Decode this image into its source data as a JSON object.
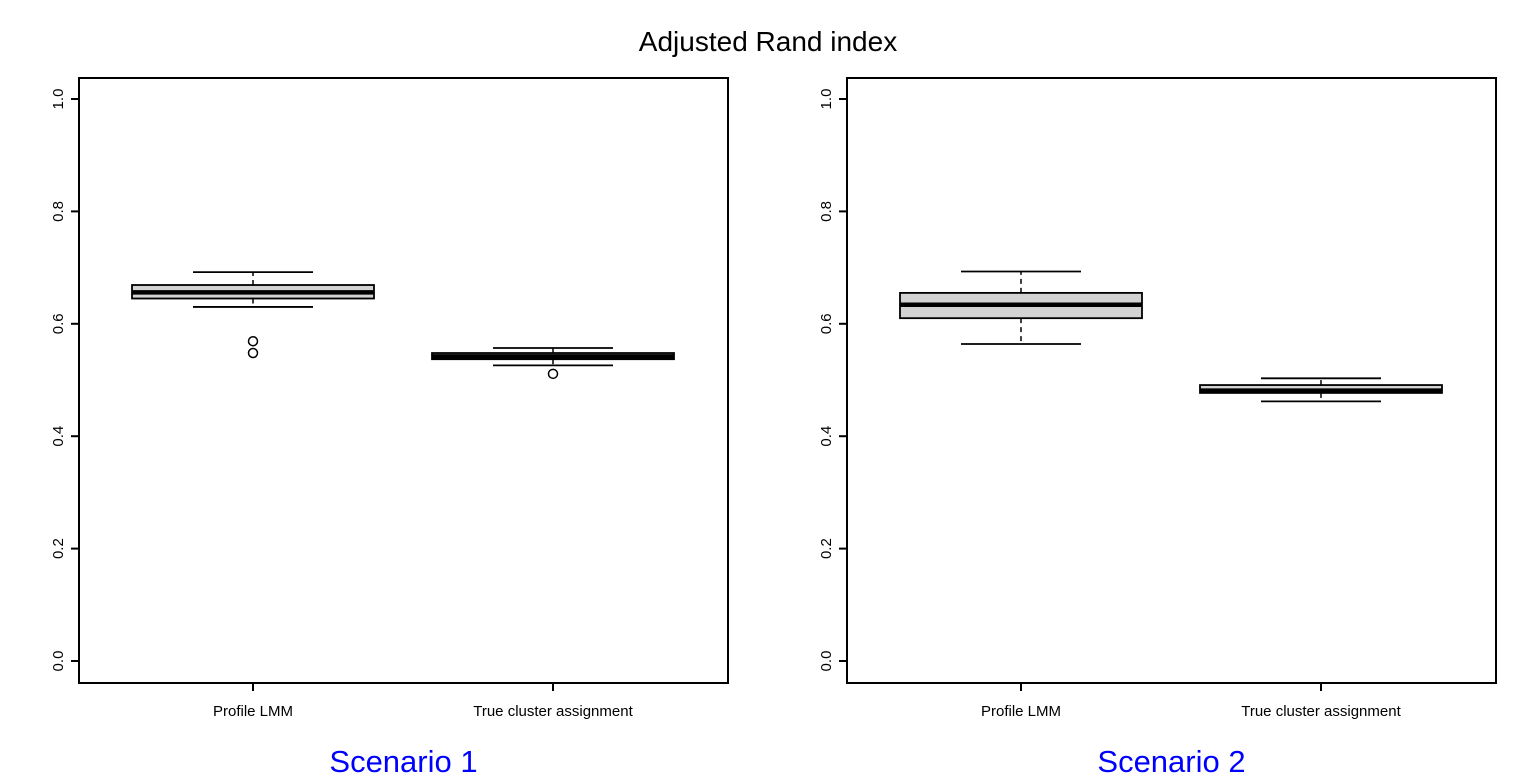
{
  "chart_data": {
    "type": "boxplot",
    "title": "Adjusted Rand index",
    "ylim": [
      -0.04,
      1.04
    ],
    "yticks": [
      0.0,
      0.2,
      0.4,
      0.6,
      0.8,
      1.0
    ],
    "ytick_labels": [
      "0.0",
      "0.2",
      "0.4",
      "0.6",
      "0.8",
      "1.0"
    ],
    "grid": false,
    "panels": [
      {
        "subtitle": "Scenario 1",
        "categories": [
          "Profile LMM",
          "True cluster assignment"
        ],
        "boxes": [
          {
            "category": "Profile LMM",
            "whisker_low": 0.63,
            "q1": 0.645,
            "median": 0.656,
            "q3": 0.669,
            "whisker_high": 0.692,
            "outliers": [
              0.569,
              0.548
            ]
          },
          {
            "category": "True cluster assignment",
            "whisker_low": 0.526,
            "q1": 0.537,
            "median": 0.542,
            "q3": 0.548,
            "whisker_high": 0.557,
            "outliers": [
              0.511
            ]
          }
        ]
      },
      {
        "subtitle": "Scenario 2",
        "categories": [
          "Profile LMM",
          "True cluster assignment"
        ],
        "boxes": [
          {
            "category": "Profile LMM",
            "whisker_low": 0.564,
            "q1": 0.61,
            "median": 0.634,
            "q3": 0.655,
            "whisker_high": 0.693,
            "outliers": []
          },
          {
            "category": "True cluster assignment",
            "whisker_low": 0.462,
            "q1": 0.477,
            "median": 0.481,
            "q3": 0.491,
            "whisker_high": 0.503,
            "outliers": []
          }
        ]
      }
    ],
    "colors": {
      "box_fill": "#d3d3d3",
      "box_stroke": "#000000",
      "median_color": "#000000",
      "axis_color": "#000000",
      "title_color": "#000000",
      "subtitle_color": "#0000ff"
    }
  }
}
